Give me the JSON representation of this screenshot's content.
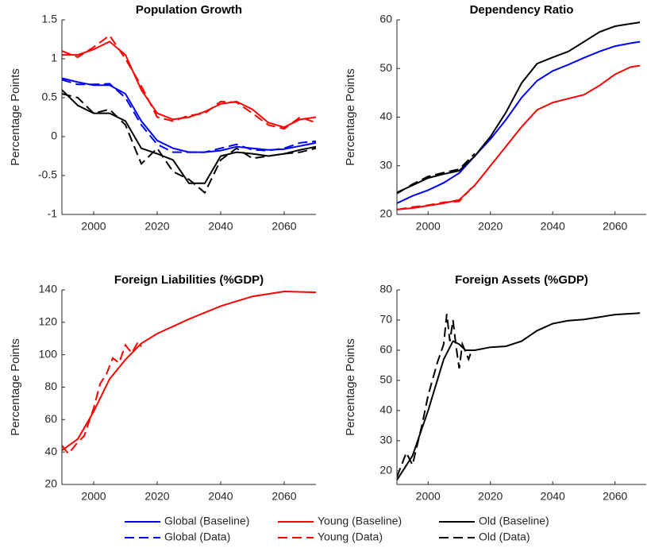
{
  "chart_data": [
    {
      "type": "line",
      "title": "Population Growth",
      "ylabel": "Percentage Points",
      "xlim": [
        1990,
        2070
      ],
      "xticks": [
        2000,
        2020,
        2040,
        2060
      ],
      "ylim": [
        -1,
        1.5
      ],
      "yticks": [
        -1,
        -0.5,
        0,
        0.5,
        1,
        1.5
      ],
      "series": [
        {
          "name": "Global (Baseline)",
          "color": "#0000ff",
          "dash": false,
          "x": [
            1990,
            1995,
            2000,
            2005,
            2010,
            2015,
            2020,
            2025,
            2030,
            2035,
            2040,
            2045,
            2050,
            2055,
            2060,
            2065,
            2070
          ],
          "values": [
            0.75,
            0.7,
            0.66,
            0.66,
            0.55,
            0.2,
            -0.05,
            -0.15,
            -0.2,
            -0.2,
            -0.18,
            -0.13,
            -0.15,
            -0.17,
            -0.16,
            -0.12,
            -0.08
          ]
        },
        {
          "name": "Global (Data)",
          "color": "#0000ff",
          "dash": true,
          "x": [
            1990,
            1995,
            2000,
            2005,
            2010,
            2015,
            2020,
            2025,
            2030,
            2035,
            2040,
            2045,
            2050,
            2055,
            2060,
            2065,
            2070
          ],
          "values": [
            0.73,
            0.67,
            0.67,
            0.68,
            0.5,
            0.15,
            -0.1,
            -0.2,
            -0.2,
            -0.2,
            -0.15,
            -0.1,
            -0.17,
            -0.18,
            -0.15,
            -0.08,
            -0.06
          ]
        },
        {
          "name": "Young (Baseline)",
          "color": "#ff0000",
          "dash": false,
          "x": [
            1990,
            1995,
            2000,
            2005,
            2010,
            2015,
            2020,
            2025,
            2030,
            2035,
            2040,
            2045,
            2050,
            2055,
            2060,
            2065,
            2070
          ],
          "values": [
            1.05,
            1.05,
            1.12,
            1.22,
            1.05,
            0.6,
            0.3,
            0.22,
            0.25,
            0.32,
            0.42,
            0.45,
            0.35,
            0.18,
            0.12,
            0.22,
            0.25
          ]
        },
        {
          "name": "Young (Data)",
          "color": "#ff0000",
          "dash": true,
          "x": [
            1990,
            1995,
            2000,
            2005,
            2010,
            2015,
            2020,
            2025,
            2030,
            2035,
            2040,
            2045,
            2050,
            2055,
            2060,
            2065,
            2070
          ],
          "values": [
            1.1,
            1.02,
            1.15,
            1.3,
            1.0,
            0.65,
            0.25,
            0.2,
            0.27,
            0.3,
            0.45,
            0.44,
            0.3,
            0.15,
            0.1,
            0.25,
            0.18
          ]
        },
        {
          "name": "Old (Baseline)",
          "color": "#000000",
          "dash": false,
          "x": [
            1990,
            1995,
            2000,
            2005,
            2010,
            2015,
            2020,
            2025,
            2030,
            2035,
            2040,
            2045,
            2050,
            2055,
            2060,
            2065,
            2070
          ],
          "values": [
            0.6,
            0.4,
            0.3,
            0.3,
            0.2,
            -0.15,
            -0.22,
            -0.3,
            -0.6,
            -0.6,
            -0.25,
            -0.2,
            -0.22,
            -0.25,
            -0.22,
            -0.17,
            -0.13
          ]
        },
        {
          "name": "Old (Data)",
          "color": "#000000",
          "dash": true,
          "x": [
            1990,
            1995,
            2000,
            2005,
            2010,
            2015,
            2020,
            2025,
            2030,
            2035,
            2040,
            2045,
            2050,
            2055,
            2060,
            2065,
            2070
          ],
          "values": [
            0.55,
            0.5,
            0.3,
            0.35,
            0.15,
            -0.35,
            -0.15,
            -0.45,
            -0.55,
            -0.72,
            -0.3,
            -0.15,
            -0.28,
            -0.25,
            -0.22,
            -0.2,
            -0.15
          ]
        }
      ]
    },
    {
      "type": "line",
      "title": "Dependency Ratio",
      "ylabel": "Percentage Points",
      "xlim": [
        1990,
        2070
      ],
      "xticks": [
        2000,
        2020,
        2040,
        2060
      ],
      "ylim": [
        20,
        60
      ],
      "yticks": [
        20,
        30,
        40,
        50,
        60
      ],
      "series": [
        {
          "color": "#0000ff",
          "dash": false,
          "x": [
            1990,
            1995,
            2000,
            2005,
            2010,
            2015,
            2020,
            2025,
            2030,
            2035,
            2040,
            2045,
            2050,
            2055,
            2060,
            2065,
            2068
          ],
          "values": [
            22.3,
            23.8,
            25,
            26.5,
            28.5,
            32,
            35.5,
            39.5,
            44,
            47.5,
            49.5,
            50.8,
            52.2,
            53.5,
            54.6,
            55.2,
            55.5
          ]
        },
        {
          "color": "#ff0000",
          "dash": false,
          "x": [
            1990,
            1995,
            2000,
            2005,
            2010,
            2015,
            2020,
            2025,
            2030,
            2035,
            2040,
            2045,
            2050,
            2055,
            2060,
            2065,
            2068
          ],
          "values": [
            21,
            21.3,
            21.8,
            22.3,
            23,
            26,
            30,
            34,
            38,
            41.5,
            43,
            43.8,
            44.6,
            46.5,
            48.8,
            50.3,
            50.6
          ]
        },
        {
          "color": "#ff0000",
          "dash": true,
          "x": [
            1990,
            1995,
            2000,
            2005,
            2010,
            2015
          ],
          "values": [
            21,
            21.5,
            21.9,
            22.5,
            22.7,
            26.2
          ]
        },
        {
          "color": "#000000",
          "dash": false,
          "x": [
            1990,
            1995,
            2000,
            2005,
            2010,
            2015,
            2020,
            2025,
            2030,
            2035,
            2040,
            2045,
            2050,
            2055,
            2060,
            2065,
            2068
          ],
          "values": [
            24.5,
            26,
            27.5,
            28.3,
            29,
            32,
            36,
            41,
            47,
            51,
            52.3,
            53.5,
            55.5,
            57.5,
            58.7,
            59.2,
            59.5
          ]
        },
        {
          "color": "#000000",
          "dash": true,
          "x": [
            1990,
            1995,
            2000,
            2005,
            2010,
            2015
          ],
          "values": [
            24.3,
            26.2,
            27.8,
            28.6,
            29.3,
            32.5
          ]
        }
      ]
    },
    {
      "type": "line",
      "title": "Foreign Liabilities (%GDP)",
      "ylabel": "Percentage Points",
      "xlim": [
        1990,
        2070
      ],
      "xticks": [
        2000,
        2020,
        2040,
        2060
      ],
      "ylim": [
        20,
        140
      ],
      "yticks": [
        20,
        40,
        60,
        80,
        100,
        120,
        140
      ],
      "series": [
        {
          "color": "#ff0000",
          "dash": false,
          "x": [
            1990,
            1995,
            2000,
            2005,
            2010,
            2015,
            2020,
            2030,
            2040,
            2050,
            2060,
            2070
          ],
          "values": [
            41,
            48,
            65,
            85,
            97,
            107,
            113,
            122,
            130,
            136,
            139,
            138.5
          ]
        },
        {
          "color": "#ff0000",
          "dash": true,
          "x": [
            1990,
            1992,
            1995,
            1997,
            2000,
            2002,
            2004,
            2006,
            2008,
            2010,
            2012,
            2014,
            2015
          ],
          "values": [
            44,
            39,
            46,
            50,
            67,
            82,
            88,
            98,
            95,
            106,
            101,
            108,
            105
          ]
        }
      ]
    },
    {
      "type": "line",
      "title": "Foreign Assets (%GDP)",
      "ylabel": "Percentage Points",
      "xlim": [
        1990,
        2070
      ],
      "xticks": [
        2000,
        2020,
        2040,
        2060
      ],
      "ylim": [
        15.5,
        80
      ],
      "yticks": [
        20,
        30,
        40,
        50,
        60,
        70,
        80
      ],
      "series": [
        {
          "color": "#000000",
          "dash": false,
          "x": [
            1990,
            1995,
            2000,
            2005,
            2008,
            2010,
            2012,
            2015,
            2020,
            2025,
            2030,
            2035,
            2040,
            2045,
            2050,
            2055,
            2060,
            2068
          ],
          "values": [
            17,
            25,
            40,
            57,
            63,
            62,
            60,
            60,
            61,
            61.3,
            63,
            66.5,
            68.8,
            69.8,
            70.2,
            71,
            71.8,
            72.3
          ]
        },
        {
          "color": "#000000",
          "dash": true,
          "x": [
            1990,
            1993,
            1995,
            1998,
            2000,
            2003,
            2005,
            2006,
            2007,
            2008,
            2009,
            2010,
            2011,
            2013,
            2014
          ],
          "values": [
            18,
            26,
            22,
            35,
            45,
            56,
            62,
            72,
            63,
            70,
            61,
            54,
            62,
            57,
            60
          ]
        }
      ]
    }
  ]
}
